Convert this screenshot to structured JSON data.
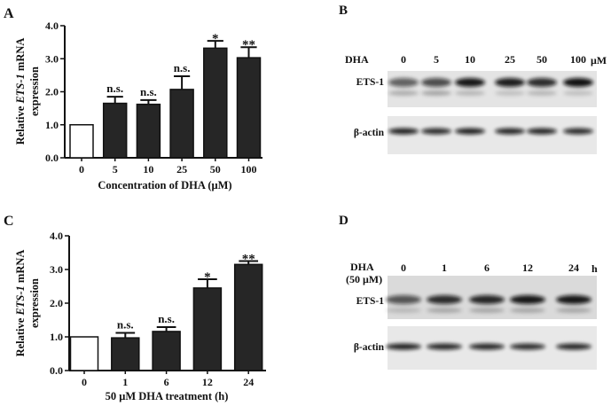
{
  "chart_data": [
    {
      "panel": "A",
      "type": "bar",
      "categories": [
        "0",
        "5",
        "10",
        "25",
        "50",
        "100"
      ],
      "values": [
        1.0,
        1.65,
        1.62,
        2.07,
        3.32,
        3.03
      ],
      "errors": [
        0.0,
        0.2,
        0.13,
        0.4,
        0.22,
        0.32
      ],
      "annotations": [
        "",
        "n.s.",
        "n.s.",
        "n.s.",
        "*",
        "**"
      ],
      "bar_colors": [
        "#ffffff",
        "#262626",
        "#262626",
        "#262626",
        "#262626",
        "#262626"
      ],
      "ylabel_parts": [
        "Relative ",
        "ETS-1",
        " mRNA"
      ],
      "ylabel_line2": "expression",
      "xlabel": "Concentration of DHA (μM)",
      "ylim": [
        0,
        4
      ],
      "yticks": [
        "0.0",
        "1.0",
        "2.0",
        "3.0",
        "4.0"
      ],
      "grid": false
    },
    {
      "panel": "C",
      "type": "bar",
      "categories": [
        "0",
        "1",
        "6",
        "12",
        "24"
      ],
      "values": [
        1.0,
        0.97,
        1.16,
        2.45,
        3.15
      ],
      "errors": [
        0.0,
        0.15,
        0.13,
        0.26,
        0.1
      ],
      "annotations": [
        "",
        "n.s.",
        "n.s.",
        "*",
        "**"
      ],
      "bar_colors": [
        "#ffffff",
        "#262626",
        "#262626",
        "#262626",
        "#262626"
      ],
      "ylabel_parts": [
        "Relative ",
        "ETS-1",
        " mRNA"
      ],
      "ylabel_line2": "expression",
      "xlabel": "50 μM DHA treatment (h)",
      "ylim": [
        0,
        4
      ],
      "yticks": [
        "0.0",
        "1.0",
        "2.0",
        "3.0",
        "4.0"
      ],
      "grid": false
    }
  ],
  "blots": {
    "B": {
      "panel": "B",
      "treatment_label": "DHA",
      "lanes": [
        "0",
        "5",
        "10",
        "25",
        "50",
        "100"
      ],
      "unit": "μM",
      "rows": [
        "ETS-1",
        "β-actin"
      ]
    },
    "D": {
      "panel": "D",
      "treatment_label": "DHA",
      "treatment_sub": "(50 μM)",
      "lanes": [
        "0",
        "1",
        "6",
        "12",
        "24"
      ],
      "unit": "h",
      "rows": [
        "ETS-1",
        "β-actin"
      ]
    }
  }
}
